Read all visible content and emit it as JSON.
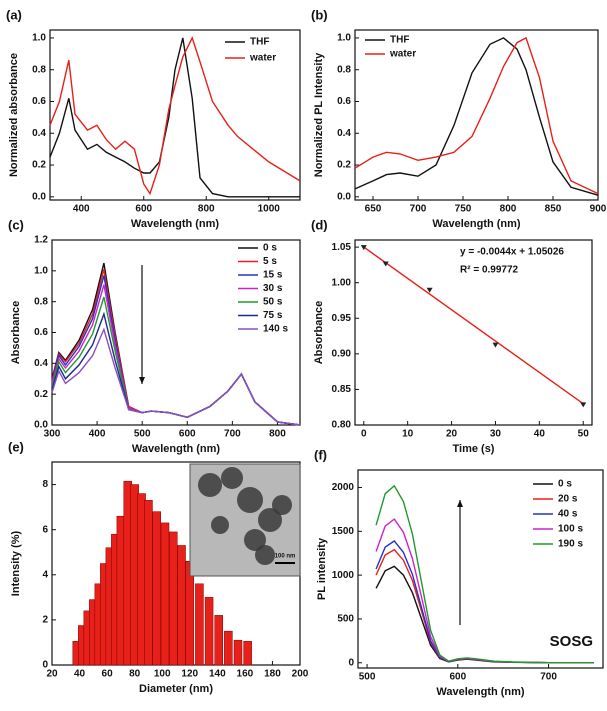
{
  "chart_data": [
    {
      "type": "line",
      "title": "(a)",
      "xlabel": "Wavelength (nm)",
      "ylabel": "Normalized absorbance",
      "xlim": [
        300,
        1100
      ],
      "xticks": [
        400,
        600,
        800,
        1000
      ],
      "ylim": [
        -0.02,
        1.05
      ],
      "yticks": [
        {
          "value": 0,
          "label": "0.0"
        },
        0.2,
        0.4,
        0.6,
        0.8,
        {
          "value": 1,
          "label": "1.0"
        }
      ],
      "x": [
        300,
        330,
        360,
        380,
        420,
        450,
        480,
        510,
        540,
        570,
        600,
        620,
        650,
        680,
        700,
        725,
        755,
        780,
        820,
        870,
        900,
        950,
        1000,
        1050,
        1100
      ],
      "series": [
        {
          "name": "THF",
          "color": "#111111",
          "values": [
            0.25,
            0.4,
            0.62,
            0.42,
            0.3,
            0.33,
            0.28,
            0.25,
            0.22,
            0.18,
            0.15,
            0.15,
            0.22,
            0.5,
            0.8,
            1.0,
            0.62,
            0.12,
            0.02,
            0.0,
            0.0,
            0.0,
            0.0,
            0.0,
            0.0
          ]
        },
        {
          "name": "water",
          "color": "#e8201a",
          "values": [
            0.45,
            0.6,
            0.86,
            0.52,
            0.42,
            0.45,
            0.36,
            0.3,
            0.35,
            0.3,
            0.08,
            0.02,
            0.2,
            0.55,
            0.7,
            0.88,
            1.0,
            0.85,
            0.6,
            0.45,
            0.38,
            0.3,
            0.22,
            0.16,
            0.1
          ]
        }
      ]
    },
    {
      "type": "line",
      "title": "(b)",
      "xlabel": "Wavelength (nm)",
      "ylabel": "Normalized PL Intensity",
      "xlim": [
        630,
        900
      ],
      "xticks": [
        650,
        700,
        750,
        800,
        850,
        900
      ],
      "ylim": [
        -0.02,
        1.05
      ],
      "yticks": [
        {
          "value": 0,
          "label": "0.0"
        },
        0.2,
        0.4,
        0.6,
        0.8,
        {
          "value": 1,
          "label": "1.0"
        }
      ],
      "x": [
        630,
        650,
        665,
        680,
        700,
        720,
        740,
        760,
        780,
        795,
        810,
        820,
        835,
        850,
        870,
        900
      ],
      "series": [
        {
          "name": "THF",
          "color": "#111111",
          "values": [
            0.05,
            0.1,
            0.14,
            0.15,
            0.13,
            0.2,
            0.45,
            0.78,
            0.96,
            1.0,
            0.93,
            0.8,
            0.5,
            0.22,
            0.06,
            0.01
          ]
        },
        {
          "name": "water",
          "color": "#e8201a",
          "values": [
            0.18,
            0.25,
            0.28,
            0.27,
            0.23,
            0.25,
            0.28,
            0.38,
            0.62,
            0.82,
            0.97,
            1.0,
            0.75,
            0.35,
            0.1,
            0.02
          ]
        }
      ]
    },
    {
      "type": "line",
      "title": "(c)",
      "xlabel": "Wavelength (nm)",
      "ylabel": "Absorbance",
      "xlim": [
        300,
        850
      ],
      "xticks": [
        300,
        400,
        500,
        600,
        700,
        800
      ],
      "ylim": [
        0,
        1.2
      ],
      "yticks": [
        {
          "value": 0,
          "label": "0.0"
        },
        0.2,
        0.4,
        0.6,
        0.8,
        {
          "value": 1,
          "label": "1.0"
        },
        1.2
      ],
      "x": [
        300,
        315,
        330,
        360,
        390,
        415,
        440,
        470,
        500,
        520,
        560,
        600,
        650,
        690,
        720,
        750,
        800,
        850
      ],
      "series": [
        {
          "name": "0 s",
          "color": "#111111",
          "values": [
            0.3,
            0.47,
            0.42,
            0.55,
            0.75,
            1.05,
            0.6,
            0.12,
            0.08,
            0.09,
            0.08,
            0.05,
            0.12,
            0.22,
            0.33,
            0.15,
            0.02,
            0.0
          ]
        },
        {
          "name": "5 s",
          "color": "#e8201a",
          "values": [
            0.29,
            0.46,
            0.41,
            0.53,
            0.72,
            1.01,
            0.58,
            0.12,
            0.08,
            0.09,
            0.08,
            0.05,
            0.12,
            0.22,
            0.33,
            0.15,
            0.02,
            0.0
          ]
        },
        {
          "name": "15 s",
          "color": "#2233cc",
          "values": [
            0.28,
            0.45,
            0.39,
            0.51,
            0.69,
            0.97,
            0.55,
            0.11,
            0.08,
            0.09,
            0.08,
            0.05,
            0.12,
            0.22,
            0.33,
            0.15,
            0.02,
            0.0
          ]
        },
        {
          "name": "30 s",
          "color": "#cc22cc",
          "values": [
            0.27,
            0.43,
            0.37,
            0.48,
            0.65,
            0.91,
            0.52,
            0.11,
            0.08,
            0.09,
            0.08,
            0.05,
            0.12,
            0.22,
            0.33,
            0.15,
            0.02,
            0.0
          ]
        },
        {
          "name": "50 s",
          "color": "#1f9a2a",
          "values": [
            0.25,
            0.41,
            0.34,
            0.44,
            0.59,
            0.83,
            0.48,
            0.1,
            0.08,
            0.09,
            0.08,
            0.05,
            0.12,
            0.22,
            0.33,
            0.15,
            0.02,
            0.0
          ]
        },
        {
          "name": "75 s",
          "color": "#1a2a8a",
          "values": [
            0.23,
            0.38,
            0.3,
            0.39,
            0.52,
            0.72,
            0.42,
            0.1,
            0.08,
            0.09,
            0.08,
            0.05,
            0.12,
            0.22,
            0.33,
            0.15,
            0.02,
            0.0
          ]
        },
        {
          "name": "140 s",
          "color": "#8a4fc0",
          "values": [
            0.21,
            0.35,
            0.27,
            0.34,
            0.45,
            0.62,
            0.37,
            0.1,
            0.08,
            0.09,
            0.08,
            0.05,
            0.12,
            0.22,
            0.33,
            0.15,
            0.02,
            0.0
          ]
        }
      ]
    },
    {
      "type": "scatter",
      "title": "(d)",
      "xlabel": "Time (s)",
      "ylabel": "Absorbance",
      "xlim": [
        -2,
        52
      ],
      "xticks": [
        0,
        10,
        20,
        30,
        40,
        50
      ],
      "ylim": [
        0.8,
        1.06
      ],
      "yticks": [
        {
          "value": 0.8,
          "label": "0.80"
        },
        0.85,
        {
          "value": 0.9,
          "label": "0.90"
        },
        0.95,
        {
          "value": 1,
          "label": "1.00"
        },
        1.05
      ],
      "x": [
        0,
        5,
        15,
        30,
        50
      ],
      "values": [
        1.05,
        1.027,
        0.99,
        0.913,
        0.829
      ],
      "color": "#222222",
      "fit_line": {
        "x": [
          0,
          50
        ],
        "values": [
          1.05,
          0.83
        ],
        "color": "#e8201a"
      },
      "annotations": [
        "y = -0.0044x + 1.05026",
        "R² = 0.99772"
      ]
    },
    {
      "type": "bar",
      "title": "(e)",
      "xlabel": "Diameter (nm)",
      "ylabel": "Intensity (%)",
      "xlim": [
        20,
        200
      ],
      "xticks": [
        20,
        40,
        60,
        80,
        100,
        120,
        140,
        160,
        180,
        200
      ],
      "ylim": [
        0,
        9
      ],
      "yticks": [
        0,
        2,
        4,
        6,
        8
      ],
      "color": "#e8201a",
      "x": [
        38,
        42,
        46,
        50,
        54,
        58,
        62,
        66,
        70,
        75,
        80,
        85,
        90,
        96,
        102,
        108,
        114,
        120,
        127,
        134,
        141,
        148,
        155,
        162
      ],
      "values": [
        1.05,
        1.75,
        2.4,
        2.9,
        3.6,
        4.5,
        5.2,
        5.8,
        6.6,
        8.15,
        8.0,
        7.6,
        7.3,
        6.8,
        6.3,
        5.9,
        5.3,
        4.6,
        3.6,
        3.0,
        2.2,
        1.5,
        1.1,
        1.05
      ],
      "annotations": [
        "100 nm"
      ]
    },
    {
      "type": "line",
      "title": "(f)",
      "xlabel": "Wavelength (nm)",
      "ylabel": "PL intensity",
      "xlim": [
        490,
        760
      ],
      "xticks": [
        500,
        600,
        700
      ],
      "ylim": [
        -60,
        2200
      ],
      "yticks": [
        0,
        500,
        1000,
        1500,
        2000
      ],
      "x": [
        510,
        520,
        530,
        540,
        550,
        560,
        570,
        580,
        590,
        600,
        610,
        620,
        640,
        660,
        700,
        750
      ],
      "series": [
        {
          "name": "0 s",
          "color": "#111111",
          "values": [
            850,
            1050,
            1100,
            1000,
            800,
            500,
            200,
            50,
            10,
            30,
            40,
            30,
            10,
            5,
            0,
            0
          ]
        },
        {
          "name": "20 s",
          "color": "#e8201a",
          "values": [
            1000,
            1230,
            1290,
            1170,
            940,
            590,
            230,
            60,
            12,
            35,
            45,
            35,
            12,
            6,
            0,
            0
          ]
        },
        {
          "name": "40 s",
          "color": "#2233cc",
          "values": [
            1070,
            1320,
            1390,
            1260,
            1010,
            630,
            250,
            63,
            13,
            38,
            48,
            38,
            13,
            6,
            0,
            0
          ]
        },
        {
          "name": "100 s",
          "color": "#cc22cc",
          "values": [
            1270,
            1560,
            1640,
            1490,
            1190,
            750,
            300,
            75,
            15,
            40,
            50,
            40,
            15,
            7,
            0,
            0
          ]
        },
        {
          "name": "190 s",
          "color": "#1f9a2a",
          "values": [
            1570,
            1930,
            2020,
            1840,
            1470,
            920,
            370,
            90,
            18,
            45,
            55,
            45,
            18,
            8,
            0,
            0
          ]
        }
      ],
      "annotations": [
        "SOSG"
      ]
    }
  ]
}
